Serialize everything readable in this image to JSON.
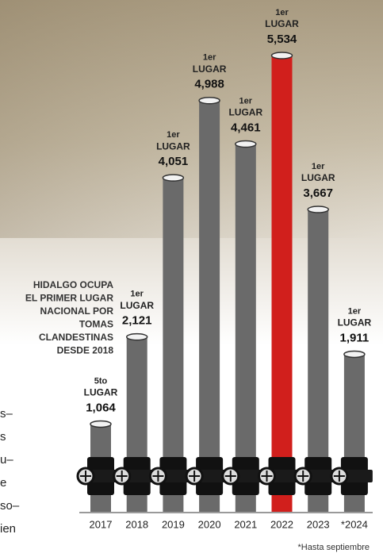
{
  "chart_data": {
    "type": "bar",
    "categories": [
      "2017",
      "2018",
      "2019",
      "2020",
      "2021",
      "2022",
      "2023",
      "*2024"
    ],
    "values": [
      1064,
      2121,
      4051,
      4988,
      4461,
      5534,
      3667,
      1911
    ],
    "value_labels": [
      "1,064",
      "2,121",
      "4,051",
      "4,988",
      "4,461",
      "5,534",
      "3,667",
      "1,911"
    ],
    "rank_labels": [
      [
        "5to",
        "LUGAR"
      ],
      [
        "1er",
        "LUGAR"
      ],
      [
        "1er",
        "LUGAR"
      ],
      [
        "1er",
        "LUGAR"
      ],
      [
        "1er",
        "LUGAR"
      ],
      [
        "1er",
        "LUGAR"
      ],
      [
        "1er",
        "LUGAR"
      ],
      [
        "1er",
        "LUGAR"
      ]
    ],
    "colors": [
      "#6a6a6a",
      "#6a6a6a",
      "#6a6a6a",
      "#6a6a6a",
      "#6a6a6a",
      "#d11f1c",
      "#6a6a6a",
      "#6a6a6a"
    ],
    "annotation": [
      "HIDALGO OCUPA",
      "EL PRIMER LUGAR",
      "NACIONAL POR",
      "TOMAS",
      "CLANDESTINAS",
      "DESDE 2018"
    ],
    "footnote": "*Hasta septiembre",
    "side_text": [
      "s–",
      "s",
      "u–",
      "e",
      "so–",
      "ien"
    ]
  }
}
